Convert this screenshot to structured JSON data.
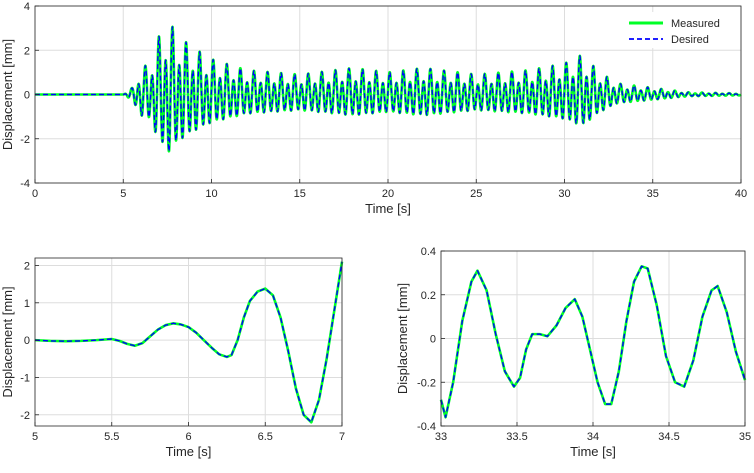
{
  "colors": {
    "measured": "#00ff26",
    "desired": "#0000ff",
    "grid": "#dddddd",
    "axis": "#262626"
  },
  "chart_data": [
    {
      "type": "line",
      "xlabel": "Time [s]",
      "ylabel": "Displacement [mm]",
      "xlim": [
        0,
        40
      ],
      "ylim": [
        -4,
        4
      ],
      "xticks": [
        0,
        5,
        10,
        15,
        20,
        25,
        30,
        35,
        40
      ],
      "yticks": [
        -4,
        -2,
        0,
        2,
        4
      ],
      "grid": true,
      "legend": {
        "placement": "top-right",
        "entries": [
          "Measured",
          "Desired"
        ]
      },
      "series": [
        {
          "name": "Measured",
          "style": "solid",
          "color": "#00ff26",
          "x": [
            0,
            5,
            5.5,
            6,
            6.5,
            7,
            7.3,
            7.6,
            8,
            8.5,
            9,
            10,
            12,
            15,
            18,
            20,
            22,
            25,
            28,
            30,
            31,
            32,
            33,
            35,
            37,
            40
          ],
          "y": [
            0,
            0,
            0.3,
            1.2,
            1.4,
            2.6,
            3.0,
            3.3,
            2.8,
            2.4,
            2.1,
            1.6,
            1.1,
            0.9,
            1.2,
            1.0,
            1.2,
            0.9,
            1.1,
            1.4,
            1.8,
            1.0,
            0.5,
            0.3,
            0.1,
            0.05
          ]
        },
        {
          "name": "Desired",
          "style": "dashed",
          "color": "#0000ff",
          "x": [
            0,
            5,
            5.5,
            6,
            6.5,
            7,
            7.3,
            7.6,
            8,
            8.5,
            9,
            10,
            12,
            15,
            18,
            20,
            22,
            25,
            28,
            30,
            31,
            32,
            33,
            35,
            37,
            40
          ],
          "y": [
            0,
            0,
            0.3,
            1.2,
            1.4,
            2.6,
            3.0,
            3.3,
            2.8,
            2.4,
            2.1,
            1.6,
            1.1,
            0.9,
            1.2,
            1.0,
            1.2,
            0.9,
            1.1,
            1.4,
            1.8,
            1.0,
            0.5,
            0.3,
            0.1,
            0.05
          ]
        }
      ]
    },
    {
      "type": "line",
      "xlabel": "Time [s]",
      "ylabel": "Displacement [mm]",
      "xlim": [
        5,
        7
      ],
      "ylim": [
        -2.3,
        2.2
      ],
      "xticks": [
        5,
        5.5,
        6,
        6.5,
        7
      ],
      "yticks": [
        -2,
        -1,
        0,
        1,
        2
      ],
      "grid": true,
      "series": [
        {
          "name": "Measured",
          "style": "solid",
          "color": "#00ff26",
          "x": [
            5,
            5.1,
            5.2,
            5.3,
            5.4,
            5.5,
            5.55,
            5.6,
            5.65,
            5.7,
            5.75,
            5.8,
            5.85,
            5.9,
            5.95,
            6.0,
            6.05,
            6.1,
            6.15,
            6.2,
            6.25,
            6.28,
            6.32,
            6.36,
            6.4,
            6.45,
            6.5,
            6.55,
            6.6,
            6.65,
            6.7,
            6.75,
            6.8,
            6.85,
            6.9,
            6.95,
            7.0
          ],
          "y": [
            0,
            -0.02,
            -0.03,
            -0.02,
            0,
            0.03,
            -0.02,
            -0.1,
            -0.15,
            -0.08,
            0.1,
            0.28,
            0.4,
            0.45,
            0.42,
            0.35,
            0.2,
            0.0,
            -0.2,
            -0.38,
            -0.45,
            -0.4,
            0.0,
            0.6,
            1.05,
            1.3,
            1.38,
            1.2,
            0.6,
            -0.3,
            -1.3,
            -2.0,
            -2.2,
            -1.6,
            -0.5,
            0.8,
            2.1
          ]
        },
        {
          "name": "Desired",
          "style": "dashed",
          "color": "#0000ff",
          "x": [
            5,
            5.1,
            5.2,
            5.3,
            5.4,
            5.5,
            5.55,
            5.6,
            5.65,
            5.7,
            5.75,
            5.8,
            5.85,
            5.9,
            5.95,
            6.0,
            6.05,
            6.1,
            6.15,
            6.2,
            6.25,
            6.28,
            6.32,
            6.36,
            6.4,
            6.45,
            6.5,
            6.55,
            6.6,
            6.65,
            6.7,
            6.75,
            6.8,
            6.85,
            6.9,
            6.95,
            7.0
          ],
          "y": [
            0,
            -0.02,
            -0.03,
            -0.02,
            0,
            0.03,
            -0.02,
            -0.1,
            -0.15,
            -0.08,
            0.1,
            0.28,
            0.4,
            0.45,
            0.42,
            0.35,
            0.2,
            0.0,
            -0.2,
            -0.38,
            -0.45,
            -0.4,
            0.0,
            0.6,
            1.05,
            1.3,
            1.38,
            1.2,
            0.6,
            -0.3,
            -1.3,
            -2.0,
            -2.2,
            -1.6,
            -0.5,
            0.8,
            2.1
          ]
        }
      ]
    },
    {
      "type": "line",
      "xlabel": "Time [s]",
      "ylabel": "Displacement [mm]",
      "xlim": [
        33,
        35
      ],
      "ylim": [
        -0.4,
        0.4
      ],
      "xticks": [
        33,
        33.5,
        34,
        34.5,
        35
      ],
      "yticks": [
        -0.4,
        -0.2,
        0,
        0.2,
        0.4
      ],
      "grid": true,
      "series": [
        {
          "name": "Measured",
          "style": "solid",
          "color": "#00ff26",
          "x": [
            33.0,
            33.03,
            33.08,
            33.14,
            33.2,
            33.24,
            33.3,
            33.36,
            33.42,
            33.48,
            33.52,
            33.56,
            33.6,
            33.65,
            33.7,
            33.76,
            33.82,
            33.88,
            33.93,
            33.98,
            34.03,
            34.08,
            34.12,
            34.17,
            34.22,
            34.27,
            34.32,
            34.36,
            34.42,
            34.48,
            34.54,
            34.6,
            34.66,
            34.72,
            34.78,
            34.82,
            34.88,
            34.94,
            35.0
          ],
          "y": [
            -0.28,
            -0.36,
            -0.2,
            0.08,
            0.26,
            0.31,
            0.22,
            0.02,
            -0.15,
            -0.22,
            -0.18,
            -0.05,
            0.02,
            0.02,
            0.01,
            0.06,
            0.14,
            0.18,
            0.1,
            -0.05,
            -0.2,
            -0.3,
            -0.3,
            -0.15,
            0.08,
            0.26,
            0.33,
            0.32,
            0.15,
            -0.08,
            -0.2,
            -0.22,
            -0.1,
            0.1,
            0.22,
            0.24,
            0.12,
            -0.06,
            -0.19
          ]
        },
        {
          "name": "Desired",
          "style": "dashed",
          "color": "#0000ff",
          "x": [
            33.0,
            33.03,
            33.08,
            33.14,
            33.2,
            33.24,
            33.3,
            33.36,
            33.42,
            33.48,
            33.52,
            33.56,
            33.6,
            33.65,
            33.7,
            33.76,
            33.82,
            33.88,
            33.93,
            33.98,
            34.03,
            34.08,
            34.12,
            34.17,
            34.22,
            34.27,
            34.32,
            34.36,
            34.42,
            34.48,
            34.54,
            34.6,
            34.66,
            34.72,
            34.78,
            34.82,
            34.88,
            34.94,
            35.0
          ],
          "y": [
            -0.28,
            -0.36,
            -0.2,
            0.08,
            0.26,
            0.31,
            0.22,
            0.02,
            -0.15,
            -0.22,
            -0.18,
            -0.05,
            0.02,
            0.02,
            0.01,
            0.06,
            0.14,
            0.18,
            0.1,
            -0.05,
            -0.2,
            -0.3,
            -0.3,
            -0.15,
            0.08,
            0.26,
            0.33,
            0.32,
            0.15,
            -0.08,
            -0.2,
            -0.22,
            -0.1,
            0.1,
            0.22,
            0.24,
            0.12,
            -0.06,
            -0.19
          ]
        }
      ]
    }
  ]
}
